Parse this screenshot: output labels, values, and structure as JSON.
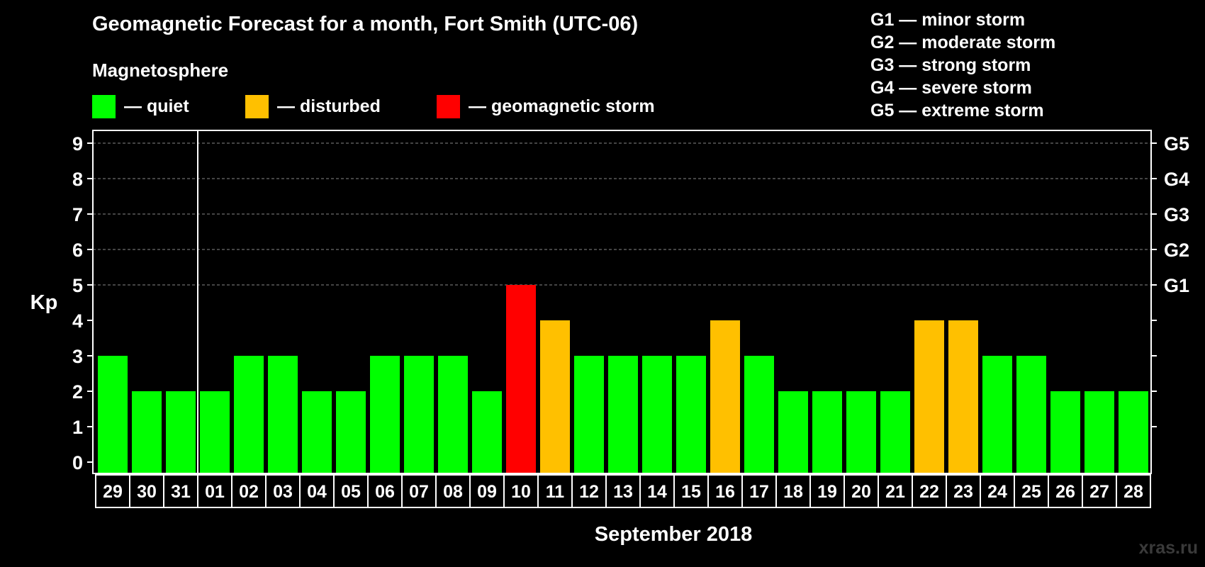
{
  "header": {
    "title": "Geomagnetic Forecast for a month, Fort Smith (UTC-06)",
    "subtitle": "Magnetosphere"
  },
  "legend": [
    {
      "label": "— quiet",
      "color": "#00ff00"
    },
    {
      "label": "— disturbed",
      "color": "#ffc000"
    },
    {
      "label": "— geomagnetic storm",
      "color": "#ff0000"
    }
  ],
  "storm_levels": [
    "G1 — minor storm",
    "G2 — moderate storm",
    "G3 — strong storm",
    "G4 — severe storm",
    "G5 — extreme storm"
  ],
  "watermark": "xras.ru",
  "chart_data": {
    "type": "bar",
    "title": "Geomagnetic Forecast for a month, Fort Smith (UTC-06)",
    "ylabel": "Kp",
    "xlabel": "September 2018",
    "ylim": [
      0,
      9
    ],
    "yticks": [
      "0",
      "1",
      "2",
      "3",
      "4",
      "5",
      "6",
      "7",
      "8",
      "9"
    ],
    "right_ticks": [
      {
        "value": 5,
        "label": "G1"
      },
      {
        "value": 6,
        "label": "G2"
      },
      {
        "value": 7,
        "label": "G3"
      },
      {
        "value": 8,
        "label": "G4"
      },
      {
        "value": 9,
        "label": "G5"
      }
    ],
    "month_separator_after": "31",
    "categories": [
      "29",
      "30",
      "31",
      "01",
      "02",
      "03",
      "04",
      "05",
      "06",
      "07",
      "08",
      "09",
      "10",
      "11",
      "12",
      "13",
      "14",
      "15",
      "16",
      "17",
      "18",
      "19",
      "20",
      "21",
      "22",
      "23",
      "24",
      "25",
      "26",
      "27",
      "28"
    ],
    "values": [
      3,
      2,
      2,
      2,
      3,
      3,
      2,
      2,
      3,
      3,
      3,
      2,
      5,
      4,
      3,
      3,
      3,
      3,
      4,
      3,
      2,
      2,
      2,
      2,
      4,
      4,
      3,
      3,
      2,
      2,
      2
    ],
    "status": [
      "quiet",
      "quiet",
      "quiet",
      "quiet",
      "quiet",
      "quiet",
      "quiet",
      "quiet",
      "quiet",
      "quiet",
      "quiet",
      "quiet",
      "storm",
      "disturbed",
      "quiet",
      "quiet",
      "quiet",
      "quiet",
      "disturbed",
      "quiet",
      "quiet",
      "quiet",
      "quiet",
      "quiet",
      "disturbed",
      "disturbed",
      "quiet",
      "quiet",
      "quiet",
      "quiet",
      "quiet"
    ],
    "status_colors": {
      "quiet": "#00ff00",
      "disturbed": "#ffc000",
      "storm": "#ff0000"
    }
  }
}
